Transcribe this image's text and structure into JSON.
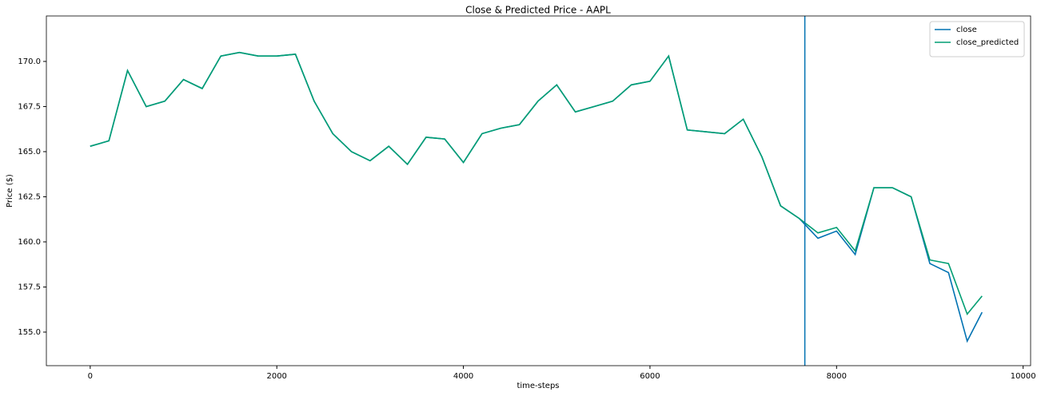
{
  "chart_data": {
    "type": "line",
    "title": "Close & Predicted Price - AAPL",
    "x_label": "time-steps",
    "y_label": "Price ($)",
    "x": [
      0,
      200,
      400,
      600,
      800,
      1000,
      1200,
      1400,
      1600,
      1800,
      2000,
      2200,
      2400,
      2600,
      2800,
      3000,
      3200,
      3400,
      3600,
      3800,
      4000,
      4200,
      4400,
      4600,
      4800,
      5000,
      5200,
      5400,
      5600,
      5800,
      6000,
      6200,
      6400,
      6600,
      6800,
      7000,
      7200,
      7400,
      7600,
      7800,
      8000,
      8200,
      8400,
      8600,
      8800,
      9000,
      9200,
      9400,
      9560
    ],
    "series": [
      {
        "name": "close",
        "color": "#0072b2",
        "values": [
          165.3,
          165.6,
          169.5,
          167.5,
          167.8,
          169.0,
          168.5,
          170.3,
          170.5,
          170.3,
          170.3,
          170.4,
          167.8,
          166.0,
          165.0,
          164.5,
          165.3,
          164.3,
          165.8,
          165.7,
          164.4,
          166.0,
          166.3,
          166.5,
          167.8,
          168.7,
          167.2,
          167.5,
          167.8,
          168.7,
          168.9,
          170.3,
          166.2,
          166.1,
          166.0,
          166.8,
          164.7,
          162.0,
          161.3,
          160.2,
          160.6,
          159.3,
          163.0,
          163.0,
          162.5,
          158.8,
          158.3,
          154.5,
          156.1
        ]
      },
      {
        "name": "close_predicted",
        "color": "#009e73",
        "values": [
          165.3,
          165.6,
          169.5,
          167.5,
          167.8,
          169.0,
          168.5,
          170.3,
          170.5,
          170.3,
          170.3,
          170.4,
          167.8,
          166.0,
          165.0,
          164.5,
          165.3,
          164.3,
          165.8,
          165.7,
          164.4,
          166.0,
          166.3,
          166.5,
          167.8,
          168.7,
          167.2,
          167.5,
          167.8,
          168.7,
          168.9,
          170.3,
          166.2,
          166.1,
          166.0,
          166.8,
          164.7,
          162.0,
          161.3,
          160.5,
          160.8,
          159.5,
          163.0,
          163.0,
          162.5,
          159.0,
          158.8,
          156.0,
          157.0
        ]
      }
    ],
    "vline": 7660,
    "vline_color": "#0072b2",
    "xlim": [
      -470,
      10080
    ],
    "ylim": [
      153.14,
      172.52
    ],
    "xticks": [
      0,
      2000,
      4000,
      6000,
      8000,
      10000
    ],
    "yticks": [
      {
        "value": 155,
        "label": "155.0"
      },
      {
        "value": 157.5,
        "label": "157.5"
      },
      {
        "value": 160,
        "label": "160.0"
      },
      {
        "value": 162.5,
        "label": "162.5"
      },
      {
        "value": 165,
        "label": "165.0"
      },
      {
        "value": 167.5,
        "label": "167.5"
      },
      {
        "value": 170,
        "label": "170.0"
      }
    ],
    "legend": "upper right"
  }
}
